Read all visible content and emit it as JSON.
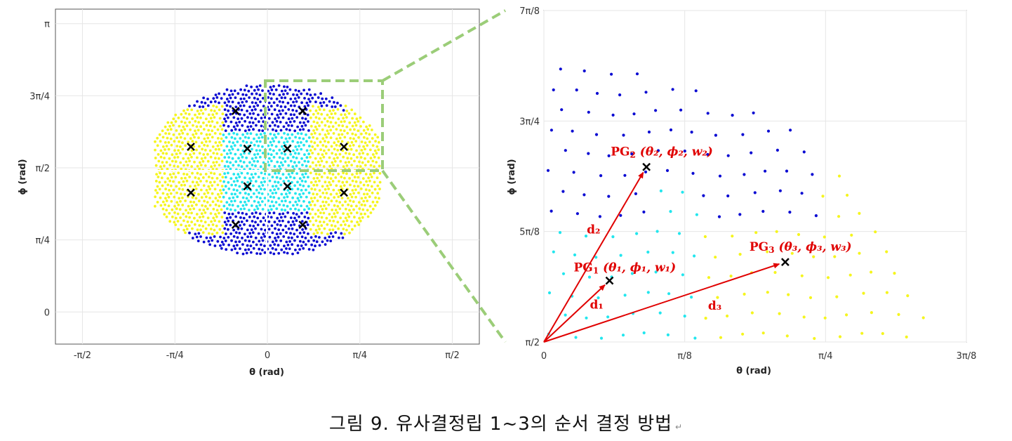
{
  "caption": "그림 9. 유사결정립 1~3의 순서 결정 방법",
  "caption_mark": "↵",
  "colors": {
    "blue": "#0a0ad2",
    "cyan": "#22e6ee",
    "yellow": "#f5f51e",
    "inset_box": "#9bcd78",
    "arrow": "#e00000",
    "grid": "#e6e6e6"
  },
  "chart_data": [
    {
      "type": "scatter",
      "title": "",
      "xlabel": "θ (rad)",
      "ylabel": "ϕ (rad)",
      "xlim": [
        -1.8,
        1.8
      ],
      "ylim": [
        -0.35,
        3.3
      ],
      "xticks": [
        -1.5708,
        -0.7854,
        0,
        0.7854,
        1.5708
      ],
      "xticklabels": [
        "-π/2",
        "-π/4",
        "0",
        "π/4",
        "π/2"
      ],
      "yticks": [
        0,
        0.7854,
        1.5708,
        2.3562,
        3.1416
      ],
      "yticklabels": [
        "0",
        "π/4",
        "π/2",
        "3π/4",
        "π"
      ],
      "grid": true,
      "series": [
        {
          "color": "blue",
          "region": "upper and lower caps",
          "points": "hexagonal point cloud"
        },
        {
          "color": "cyan",
          "region": "central band",
          "points": "hexagonal point cloud"
        },
        {
          "color": "yellow",
          "region": "left and right lobes",
          "points": "hexagonal point cloud"
        }
      ],
      "centroids": [
        [
          -0.65,
          1.8
        ],
        [
          -0.65,
          1.3
        ],
        [
          -0.17,
          1.78
        ],
        [
          0.17,
          1.78
        ],
        [
          0.65,
          1.8
        ],
        [
          0.65,
          1.3
        ],
        [
          -0.17,
          1.37
        ],
        [
          0.17,
          1.37
        ],
        [
          -0.27,
          2.19
        ],
        [
          0.3,
          2.19
        ],
        [
          -0.27,
          0.95
        ],
        [
          0.3,
          0.95
        ]
      ],
      "inset_region": {
        "x": [
          0,
          1.0996
        ],
        "y": [
          1.5708,
          2.7489
        ]
      }
    },
    {
      "type": "scatter",
      "title": "",
      "xlabel": "θ (rad)",
      "ylabel": "ϕ (rad)",
      "xlim": [
        0,
        1.1781
      ],
      "ylim": [
        1.5708,
        2.7489
      ],
      "xticks": [
        0,
        0.3927,
        0.7854,
        1.1781
      ],
      "xticklabels": [
        "0",
        "π/8",
        "π/4",
        "3π/8"
      ],
      "yticks": [
        1.5708,
        1.9635,
        2.3562,
        2.7489
      ],
      "yticklabels": [
        "π/2",
        "5π/8",
        "3π/4",
        "7π/8"
      ],
      "grid": true,
      "points": [
        {
          "name": "PG₂",
          "label_prefix": "PG",
          "label_sub": "2",
          "label": "(θ₂, ϕ₂, w₂)",
          "x": 0.286,
          "y": 2.193
        },
        {
          "name": "PG₁",
          "label_prefix": "PG",
          "label_sub": "1",
          "label": "(θ₁, ϕ₁, w₁)",
          "x": 0.183,
          "y": 1.789
        },
        {
          "name": "PG₃",
          "label_prefix": "PG",
          "label_sub": "3",
          "label": "(θ₃, ϕ₃, w₃)",
          "x": 0.673,
          "y": 1.855
        }
      ],
      "vectors": [
        {
          "label": "d₂",
          "to": "PG₂"
        },
        {
          "label": "d₁",
          "to": "PG₁"
        },
        {
          "label": "d₃",
          "to": "PG₃"
        }
      ],
      "origin": [
        0,
        1.5708
      ]
    }
  ]
}
